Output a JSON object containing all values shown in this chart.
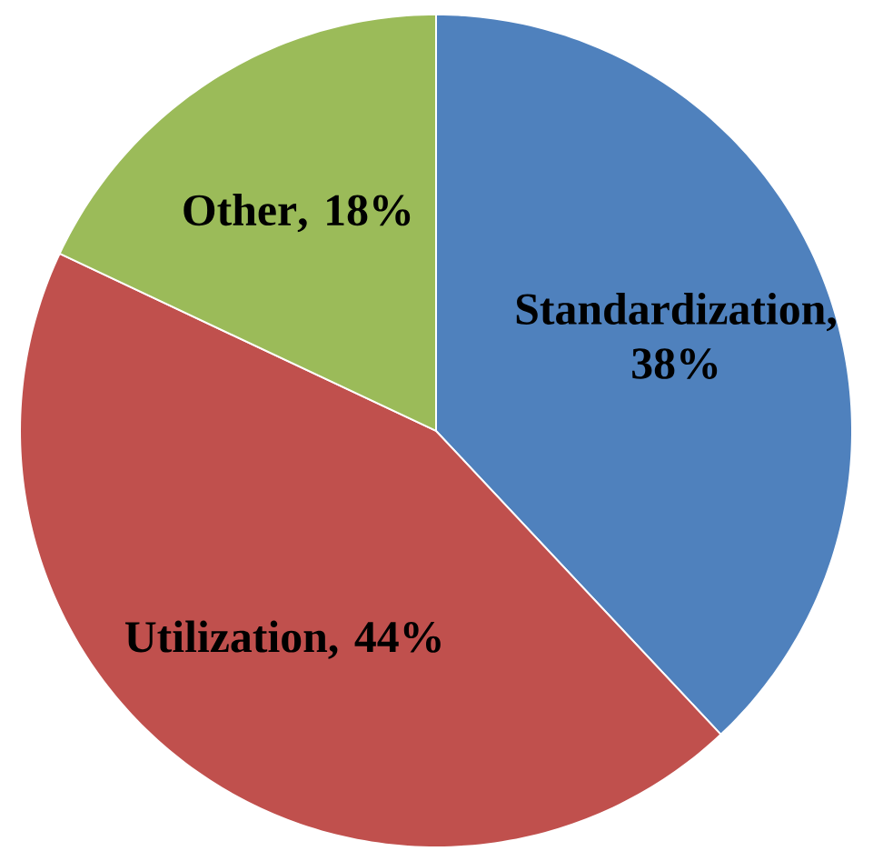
{
  "chart_data": {
    "type": "pie",
    "categories": [
      "Standardization",
      "Utilization",
      "Other"
    ],
    "values": [
      38,
      44,
      18
    ],
    "colors": [
      "#4f81bd",
      "#c0504d",
      "#9bbb59"
    ],
    "value_labels": [
      ", 38%",
      ", 44%",
      ", 18%"
    ]
  }
}
